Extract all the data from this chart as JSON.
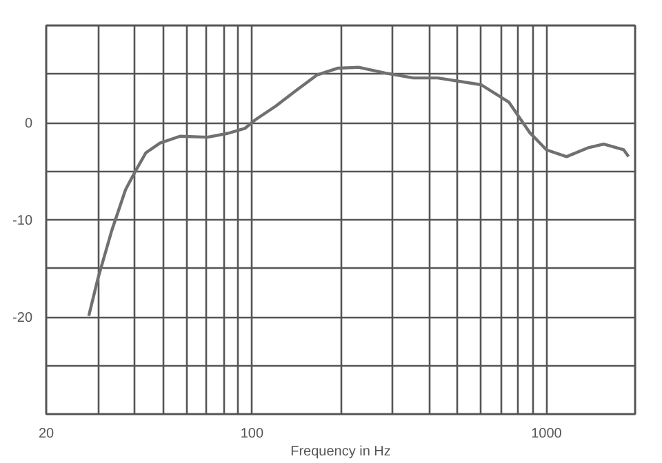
{
  "chart_data": {
    "type": "line",
    "xlabel": "Frequency in Hz",
    "log": "x",
    "grid": true,
    "marker": "none",
    "line_style": "solid",
    "x": [
      27.9,
      30,
      33.4,
      37.2,
      40,
      43.6,
      48.7,
      57,
      70.6,
      82.9,
      94.5,
      102.7,
      120.4,
      141,
      166,
      195,
      230,
      284,
      353,
      427,
      600,
      746,
      876,
      1000,
      1170,
      1380,
      1565,
      1830,
      1900
    ],
    "series": [
      {
        "color": "#707070",
        "values": [
          -19.9,
          -16,
          -11.1,
          -6.9,
          -5.1,
          -3.1,
          -2.1,
          -1.4,
          -1.5,
          -1.1,
          -0.6,
          0.3,
          1.7,
          3.3,
          4.9,
          5.6,
          5.7,
          5.1,
          4.6,
          4.6,
          3.9,
          2.1,
          -1.0,
          -2.8,
          -3.5,
          -2.6,
          -2.2,
          -2.8,
          -3.5
        ]
      }
    ],
    "xlim": [
      20,
      2000
    ],
    "ylim": [
      -30,
      10
    ],
    "xticks": [
      20,
      {
        "value": 30,
        "label": null
      },
      {
        "value": 40,
        "label": null
      },
      {
        "value": 50,
        "label": null
      },
      {
        "value": 60,
        "label": null
      },
      {
        "value": 70,
        "label": null
      },
      {
        "value": 80,
        "label": null
      },
      {
        "value": 90,
        "label": null
      },
      100,
      {
        "value": 200,
        "label": null
      },
      {
        "value": 300,
        "label": null
      },
      {
        "value": 400,
        "label": null
      },
      {
        "value": 500,
        "label": null
      },
      {
        "value": 600,
        "label": null
      },
      {
        "value": 700,
        "label": null
      },
      {
        "value": 800,
        "label": null
      },
      {
        "value": 900,
        "label": null
      },
      1000
    ],
    "yticks": [
      {
        "value": 5,
        "label": null
      },
      0,
      {
        "value": -5,
        "label": null
      },
      -10,
      {
        "value": -15,
        "label": null
      },
      -20,
      {
        "value": -25,
        "label": null
      }
    ]
  }
}
